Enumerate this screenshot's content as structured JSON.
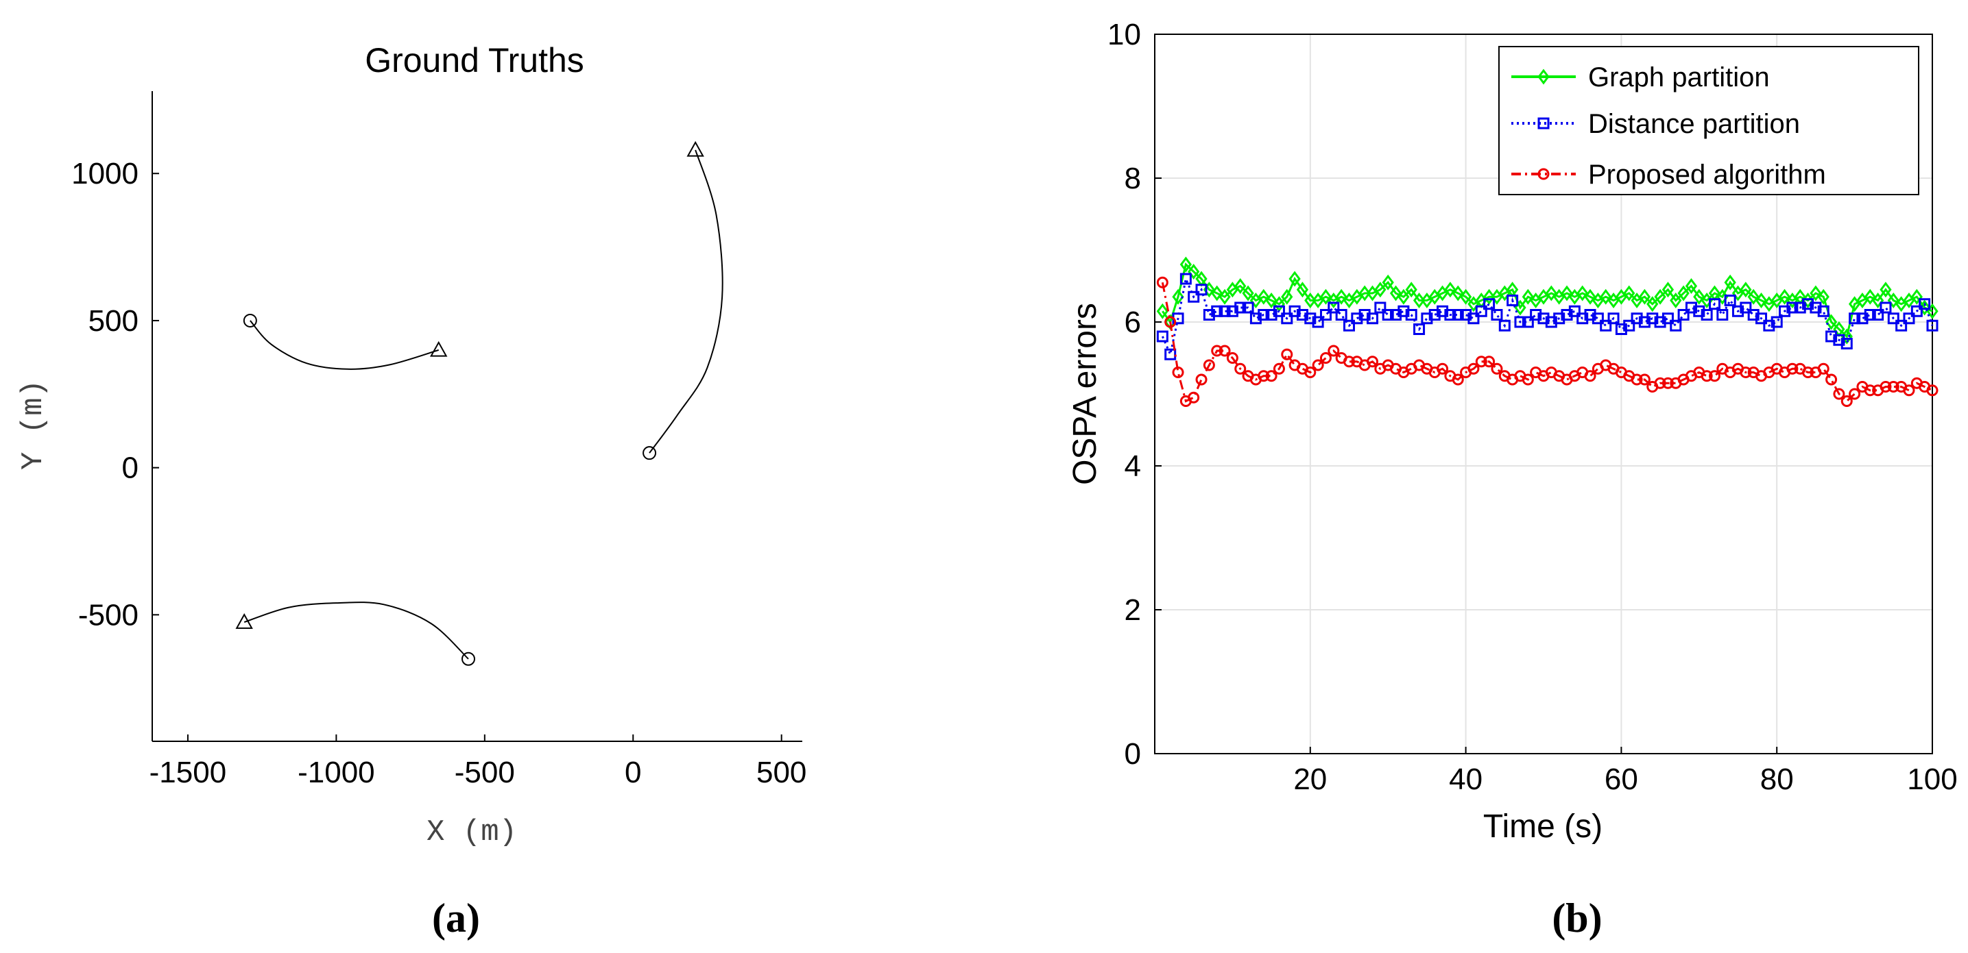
{
  "chart_data": [
    {
      "panel_label": "(a)",
      "type": "line",
      "title": "Ground Truths",
      "xlabel": "X (m)",
      "ylabel": "Y (m)",
      "xlim": [
        -1620,
        570
      ],
      "ylim": [
        -930,
        1280
      ],
      "xticks": [
        -1500,
        -1000,
        -500,
        0,
        500
      ],
      "xtick_labels": [
        "-1500",
        "-1000",
        "-500",
        "0",
        "500"
      ],
      "yticks": [
        -500,
        0,
        500,
        1000
      ],
      "ytick_labels": [
        "-500",
        "0",
        "500",
        "1000"
      ],
      "grid": false,
      "start_marker": "circle",
      "end_marker": "triangle",
      "color": "#000000",
      "tracks": [
        {
          "points": [
            [
              -1290,
              500
            ],
            [
              -1220,
              420
            ],
            [
              -1100,
              355
            ],
            [
              -960,
              335
            ],
            [
              -820,
              350
            ],
            [
              -655,
              400
            ]
          ]
        },
        {
          "points": [
            [
              55,
              50
            ],
            [
              150,
              180
            ],
            [
              250,
              340
            ],
            [
              300,
              580
            ],
            [
              280,
              860
            ],
            [
              210,
              1080
            ]
          ]
        },
        {
          "points": [
            [
              -555,
              -650
            ],
            [
              -680,
              -530
            ],
            [
              -840,
              -465
            ],
            [
              -1000,
              -460
            ],
            [
              -1160,
              -475
            ],
            [
              -1310,
              -525
            ]
          ]
        },
        {
          "points": []
        }
      ]
    },
    {
      "panel_label": "(b)",
      "type": "line",
      "title": "",
      "xlabel": "Time (s)",
      "ylabel": "OSPA errors",
      "xlim": [
        0,
        100
      ],
      "ylim": [
        0,
        10
      ],
      "xticks": [
        20,
        40,
        60,
        80,
        100
      ],
      "xtick_labels": [
        "20",
        "40",
        "60",
        "80",
        "100"
      ],
      "yticks": [
        0,
        2,
        4,
        6,
        8,
        10
      ],
      "ytick_labels": [
        "0",
        "2",
        "4",
        "6",
        "8",
        "10"
      ],
      "grid": true,
      "legend_position": "top-right",
      "x": [
        1,
        2,
        3,
        4,
        5,
        6,
        7,
        8,
        9,
        10,
        11,
        12,
        13,
        14,
        15,
        16,
        17,
        18,
        19,
        20,
        21,
        22,
        23,
        24,
        25,
        26,
        27,
        28,
        29,
        30,
        31,
        32,
        33,
        34,
        35,
        36,
        37,
        38,
        39,
        40,
        41,
        42,
        43,
        44,
        45,
        46,
        47,
        48,
        49,
        50,
        51,
        52,
        53,
        54,
        55,
        56,
        57,
        58,
        59,
        60,
        61,
        62,
        63,
        64,
        65,
        66,
        67,
        68,
        69,
        70,
        71,
        72,
        73,
        74,
        75,
        76,
        77,
        78,
        79,
        80,
        81,
        82,
        83,
        84,
        85,
        86,
        87,
        88,
        89,
        90,
        91,
        92,
        93,
        94,
        95,
        96,
        97,
        98,
        99,
        100
      ],
      "series": [
        {
          "name": "Graph partition",
          "color": "#00ee00",
          "marker": "diamond",
          "line_style": "solid",
          "values": [
            6.15,
            6.0,
            6.35,
            6.8,
            6.7,
            6.6,
            6.45,
            6.4,
            6.35,
            6.45,
            6.5,
            6.4,
            6.3,
            6.35,
            6.3,
            6.25,
            6.35,
            6.6,
            6.45,
            6.3,
            6.3,
            6.35,
            6.3,
            6.35,
            6.3,
            6.35,
            6.4,
            6.4,
            6.45,
            6.55,
            6.4,
            6.35,
            6.45,
            6.3,
            6.3,
            6.35,
            6.4,
            6.45,
            6.4,
            6.35,
            6.25,
            6.3,
            6.35,
            6.35,
            6.4,
            6.45,
            6.2,
            6.35,
            6.3,
            6.35,
            6.4,
            6.35,
            6.4,
            6.35,
            6.4,
            6.35,
            6.3,
            6.35,
            6.3,
            6.35,
            6.4,
            6.3,
            6.35,
            6.25,
            6.35,
            6.45,
            6.3,
            6.4,
            6.5,
            6.35,
            6.3,
            6.4,
            6.35,
            6.55,
            6.4,
            6.45,
            6.35,
            6.3,
            6.25,
            6.3,
            6.35,
            6.3,
            6.35,
            6.3,
            6.4,
            6.35,
            6.0,
            5.9,
            5.8,
            6.25,
            6.3,
            6.35,
            6.3,
            6.45,
            6.3,
            6.25,
            6.3,
            6.35,
            6.2,
            6.15
          ]
        },
        {
          "name": "Distance partition",
          "color": "#0000ee",
          "marker": "square",
          "line_style": "dotted",
          "values": [
            5.8,
            5.55,
            6.05,
            6.6,
            6.35,
            6.45,
            6.1,
            6.15,
            6.15,
            6.15,
            6.2,
            6.2,
            6.05,
            6.1,
            6.1,
            6.15,
            6.05,
            6.15,
            6.1,
            6.05,
            6.0,
            6.1,
            6.2,
            6.1,
            5.95,
            6.05,
            6.1,
            6.05,
            6.2,
            6.1,
            6.1,
            6.15,
            6.1,
            5.9,
            6.05,
            6.1,
            6.15,
            6.1,
            6.1,
            6.1,
            6.05,
            6.15,
            6.25,
            6.1,
            5.95,
            6.3,
            6.0,
            6.0,
            6.1,
            6.05,
            6.0,
            6.05,
            6.1,
            6.15,
            6.05,
            6.1,
            6.05,
            5.95,
            6.05,
            5.9,
            5.95,
            6.05,
            6.0,
            6.05,
            6.0,
            6.05,
            5.95,
            6.1,
            6.2,
            6.15,
            6.1,
            6.25,
            6.1,
            6.3,
            6.15,
            6.2,
            6.1,
            6.05,
            5.95,
            6.0,
            6.15,
            6.2,
            6.2,
            6.25,
            6.2,
            6.15,
            5.8,
            5.75,
            5.7,
            6.05,
            6.05,
            6.1,
            6.1,
            6.2,
            6.05,
            5.95,
            6.05,
            6.15,
            6.25,
            5.95
          ]
        },
        {
          "name": "Proposed algorithm",
          "color": "#ee0000",
          "marker": "circle",
          "line_style": "dashdot",
          "values": [
            6.55,
            6.0,
            5.3,
            4.9,
            4.95,
            5.2,
            5.4,
            5.6,
            5.6,
            5.5,
            5.35,
            5.25,
            5.2,
            5.25,
            5.25,
            5.35,
            5.55,
            5.4,
            5.35,
            5.3,
            5.4,
            5.5,
            5.6,
            5.5,
            5.45,
            5.45,
            5.4,
            5.45,
            5.35,
            5.4,
            5.35,
            5.3,
            5.35,
            5.4,
            5.35,
            5.3,
            5.35,
            5.25,
            5.2,
            5.3,
            5.35,
            5.45,
            5.45,
            5.35,
            5.25,
            5.2,
            5.25,
            5.2,
            5.3,
            5.25,
            5.3,
            5.25,
            5.2,
            5.25,
            5.3,
            5.25,
            5.35,
            5.4,
            5.35,
            5.3,
            5.25,
            5.2,
            5.2,
            5.1,
            5.15,
            5.15,
            5.15,
            5.2,
            5.25,
            5.3,
            5.25,
            5.25,
            5.35,
            5.3,
            5.35,
            5.3,
            5.3,
            5.25,
            5.3,
            5.35,
            5.3,
            5.35,
            5.35,
            5.3,
            5.3,
            5.35,
            5.2,
            5.0,
            4.9,
            5.0,
            5.1,
            5.05,
            5.05,
            5.1,
            5.1,
            5.1,
            5.05,
            5.15,
            5.1,
            5.05
          ]
        }
      ]
    }
  ]
}
